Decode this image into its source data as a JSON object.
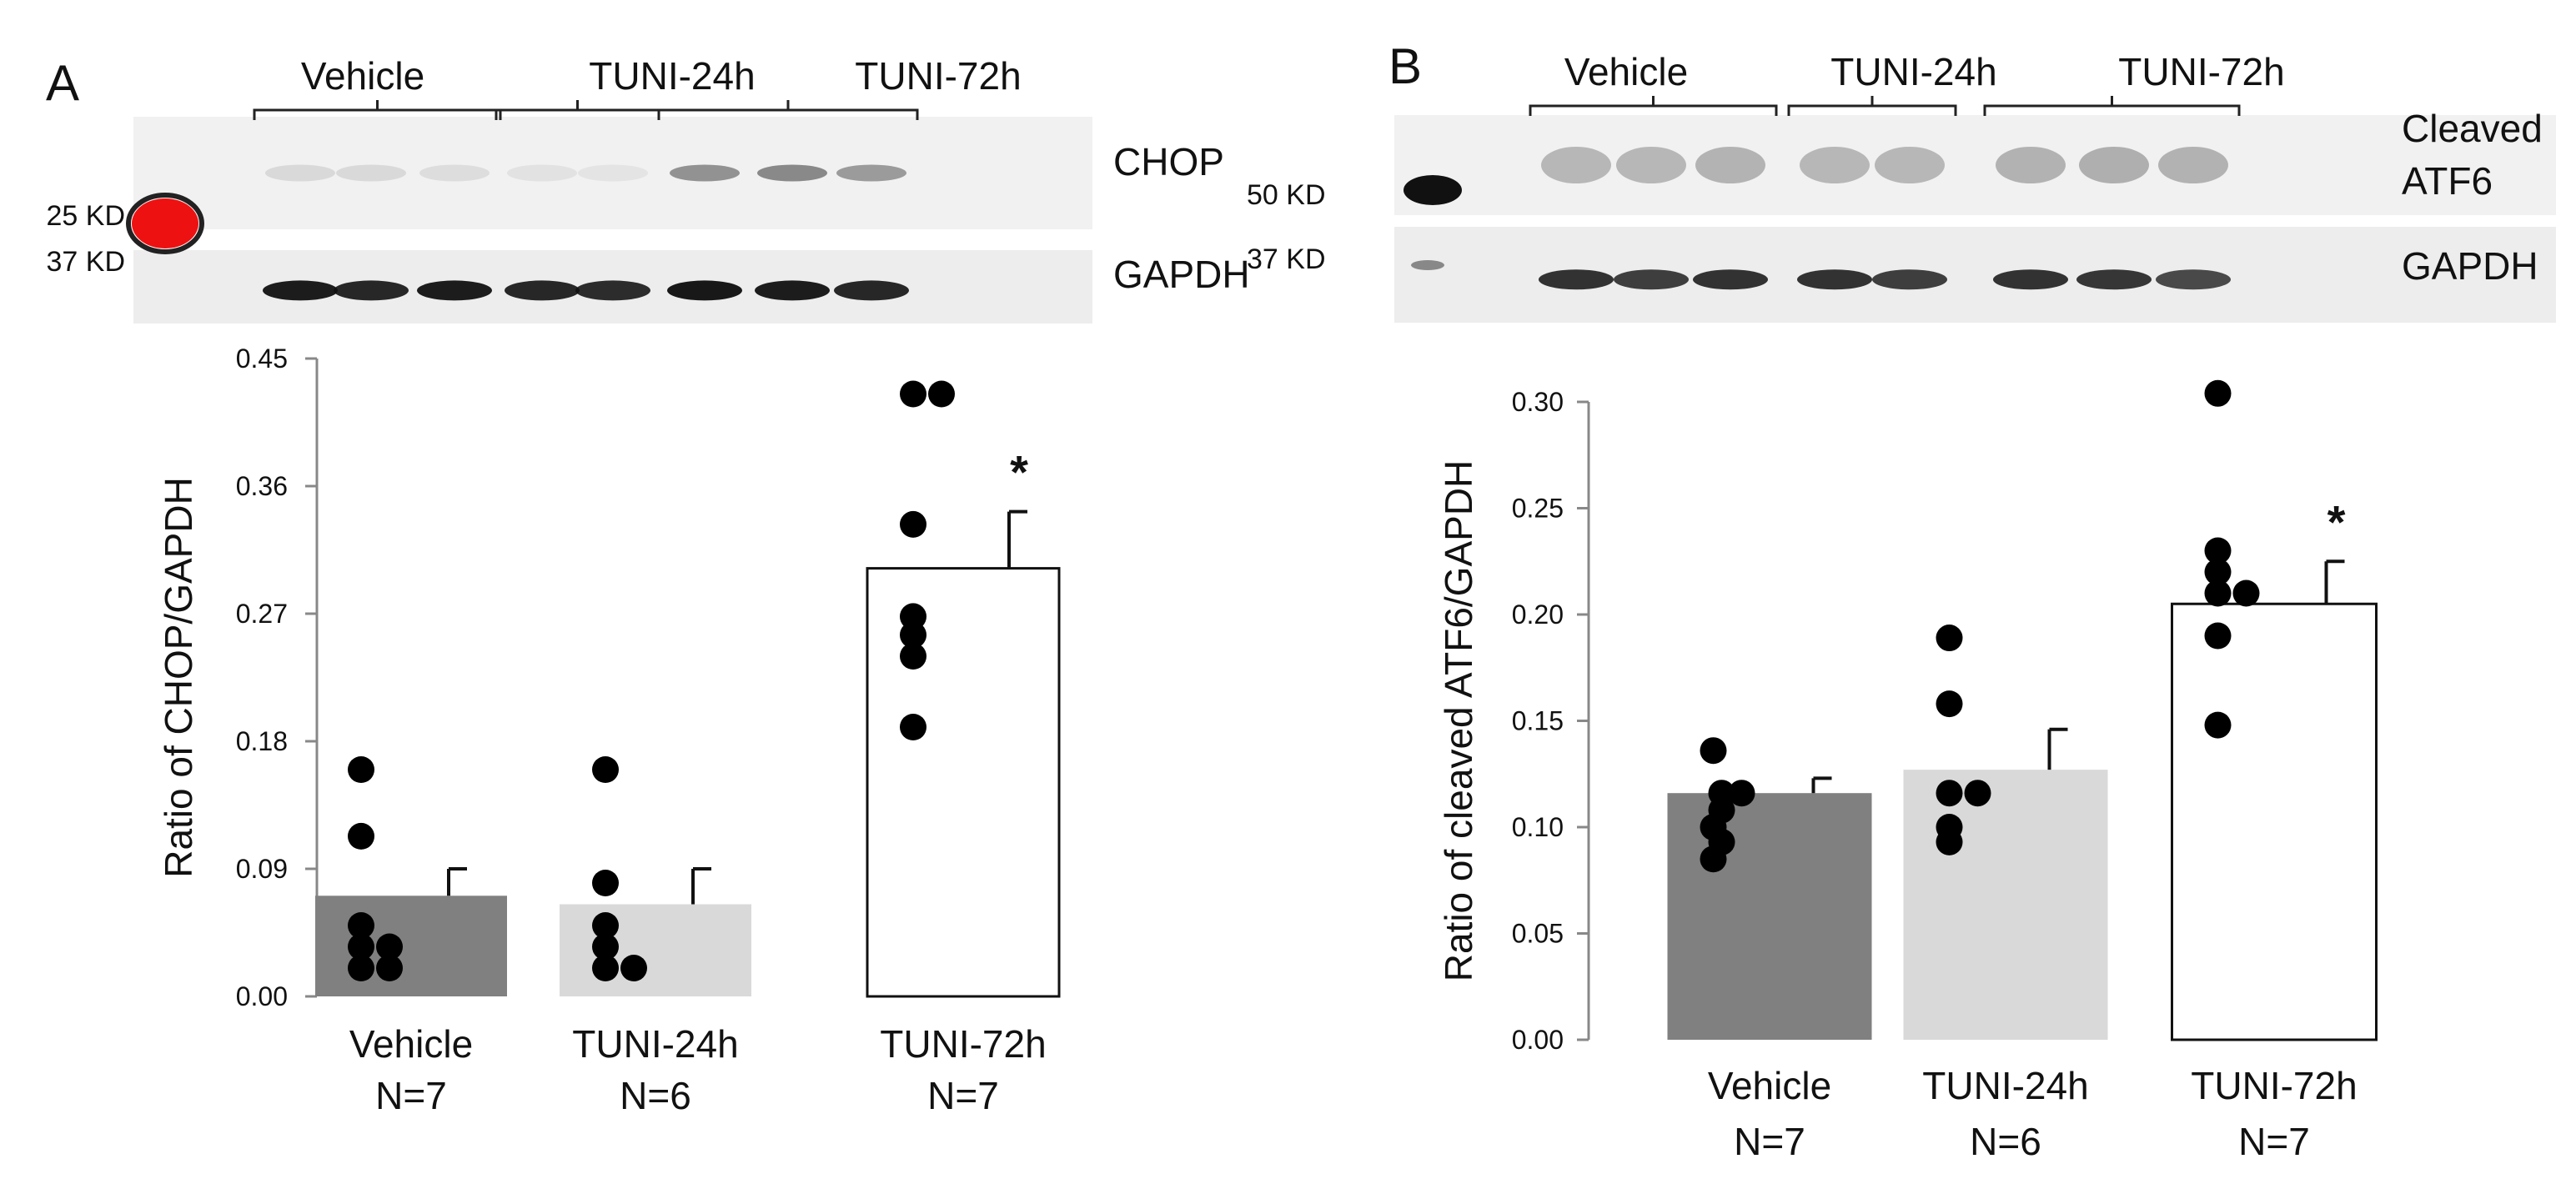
{
  "panels": [
    {
      "letter": "A",
      "blot": {
        "groups": [
          "Vehicle",
          "TUNI-24h",
          "TUNI-72h"
        ],
        "target_label": "CHOP",
        "target_marker": "25 KD",
        "loading_label": "GAPDH",
        "loading_marker": "37 KD",
        "target_band_intensity": [
          0.12,
          0.12,
          0.1,
          0.08,
          0.07,
          0.5,
          0.55,
          0.45
        ],
        "loading_band_intensity": [
          0.95,
          0.9,
          0.95,
          0.9,
          0.88,
          0.97,
          0.95,
          0.9
        ]
      },
      "chart_data": {
        "type": "bar",
        "ylabel": "Ratio of CHOP/GAPDH",
        "ylim": [
          0,
          0.45
        ],
        "yticks": [
          "0.00",
          "0.09",
          "0.18",
          "0.27",
          "0.36",
          "0.45"
        ],
        "categories": [
          "Vehicle",
          "TUNI-24h",
          "TUNI-72h"
        ],
        "n_labels": [
          "N=7",
          "N=6",
          "N=7"
        ],
        "values": [
          0.071,
          0.065,
          0.302
        ],
        "errors": [
          0.019,
          0.025,
          0.04
        ],
        "bar_colors": [
          "#808080",
          "#d9d9d9",
          "#ffffff"
        ],
        "points": [
          [
            0.16,
            0.113,
            0.05,
            0.035,
            0.035,
            0.02,
            0.02
          ],
          [
            0.16,
            0.08,
            0.05,
            0.02,
            0.02,
            0.035
          ],
          [
            0.425,
            0.425,
            0.333,
            0.268,
            0.255,
            0.24,
            0.19
          ]
        ],
        "significance": [
          "",
          "",
          "*"
        ]
      }
    },
    {
      "letter": "B",
      "blot": {
        "groups": [
          "Vehicle",
          "TUNI-24h",
          "TUNI-72h"
        ],
        "target_label": "Cleaved ATF6",
        "target_label_lines": [
          "Cleaved",
          "ATF6"
        ],
        "target_marker": "50 KD",
        "loading_label": "GAPDH",
        "loading_marker": "37 KD",
        "target_band_intensity": [
          0.3,
          0.3,
          0.32,
          0.3,
          0.3,
          0.33,
          0.35,
          0.33
        ],
        "loading_band_intensity": [
          0.85,
          0.8,
          0.85,
          0.85,
          0.8,
          0.85,
          0.83,
          0.75
        ]
      },
      "chart_data": {
        "type": "bar",
        "ylabel": "Ratio of cleaved ATF6/GAPDH",
        "ylim": [
          0,
          0.3
        ],
        "yticks": [
          "0.00",
          "0.05",
          "0.10",
          "0.15",
          "0.20",
          "0.25",
          "0.30"
        ],
        "categories": [
          "Vehicle",
          "TUNI-24h",
          "TUNI-72h"
        ],
        "n_labels": [
          "N=7",
          "N=6",
          "N=7"
        ],
        "values": [
          0.116,
          0.127,
          0.205
        ],
        "errors": [
          0.007,
          0.019,
          0.02
        ],
        "bar_colors": [
          "#808080",
          "#d9d9d9",
          "#ffffff"
        ],
        "points": [
          [
            0.136,
            0.116,
            0.116,
            0.108,
            0.1,
            0.093,
            0.085
          ],
          [
            0.189,
            0.158,
            0.116,
            0.116,
            0.1,
            0.093
          ],
          [
            0.304,
            0.23,
            0.22,
            0.21,
            0.21,
            0.19,
            0.148
          ]
        ],
        "significance": [
          "",
          "",
          "*"
        ]
      }
    }
  ]
}
